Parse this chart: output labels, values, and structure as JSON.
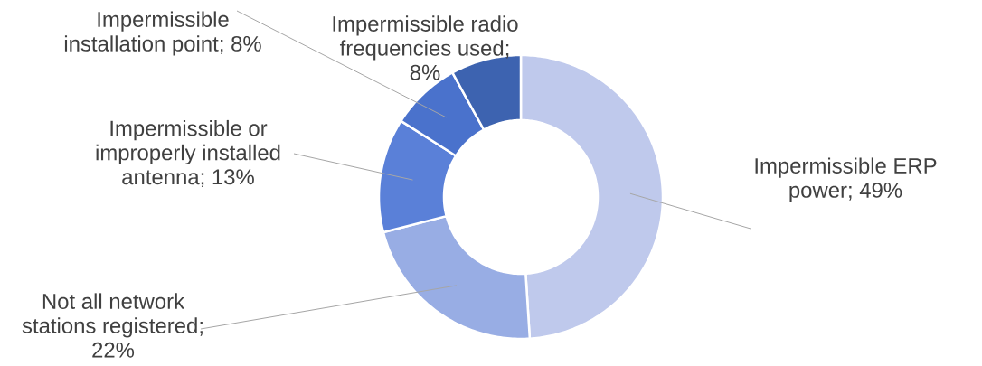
{
  "chart_data": {
    "type": "donut",
    "categories": [
      "Impermissible ERP power",
      "Not all network stations registered",
      "Impermissible or improperly installed antenna",
      "Impermissible installation point",
      "Impermissible radio frequencies used"
    ],
    "values": [
      49,
      22,
      13,
      8,
      8
    ],
    "value_labels": [
      "; 49%",
      "; 22%",
      "; 13%",
      "; 8%",
      "; 8%"
    ],
    "colors": [
      "#bfc9ec",
      "#98ade4",
      "#5a80d8",
      "#4a72cc",
      "#3d63b0"
    ]
  }
}
